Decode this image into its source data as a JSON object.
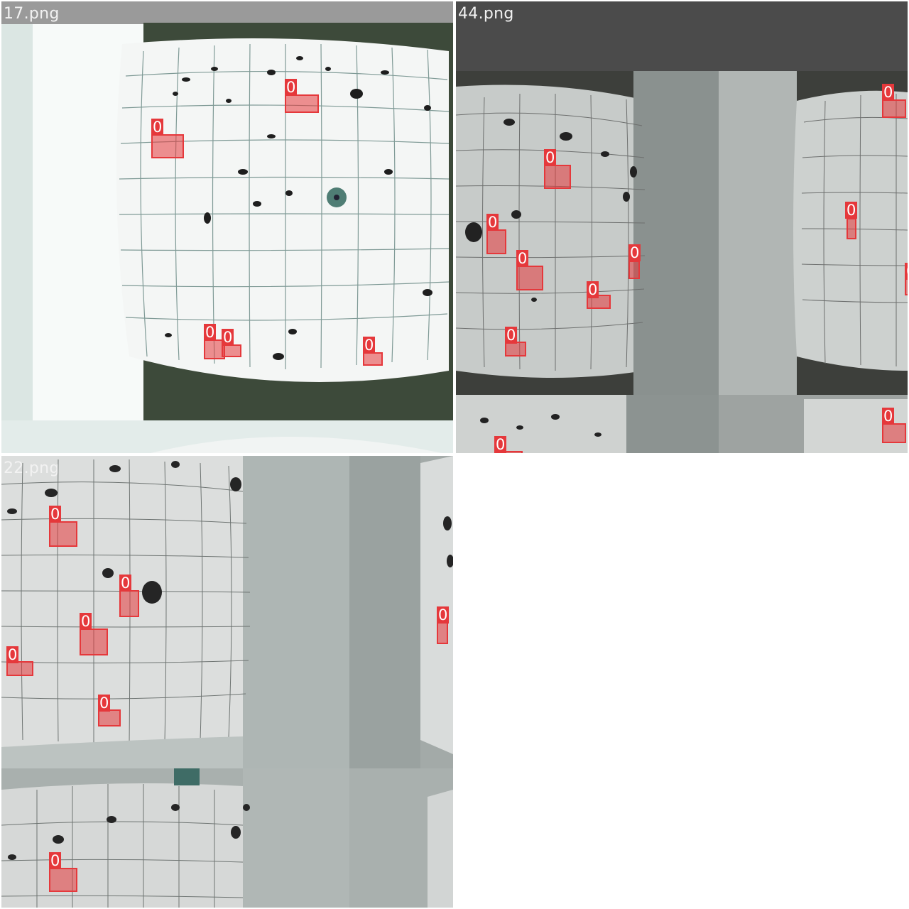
{
  "tiles": [
    {
      "id": "tile-17",
      "filename": "17.png",
      "detections": [
        {
          "cls": "0"
        },
        {
          "cls": "0"
        },
        {
          "cls": "0"
        },
        {
          "cls": "0"
        },
        {
          "cls": "0"
        }
      ]
    },
    {
      "id": "tile-44",
      "filename": "44.png",
      "detections": [
        {
          "cls": "0"
        },
        {
          "cls": "0"
        },
        {
          "cls": "0"
        },
        {
          "cls": "0"
        },
        {
          "cls": "0"
        },
        {
          "cls": "0"
        },
        {
          "cls": "0"
        },
        {
          "cls": "0"
        },
        {
          "cls": "0"
        },
        {
          "cls": "0"
        },
        {
          "cls": "0"
        }
      ]
    },
    {
      "id": "tile-22",
      "filename": "22.png",
      "detections": [
        {
          "cls": "0"
        },
        {
          "cls": "0"
        },
        {
          "cls": "0"
        },
        {
          "cls": "0"
        },
        {
          "cls": "0"
        },
        {
          "cls": "0"
        },
        {
          "cls": "0"
        }
      ]
    }
  ],
  "colors": {
    "detection": "#e5383b",
    "label_text": "#ffffff"
  }
}
